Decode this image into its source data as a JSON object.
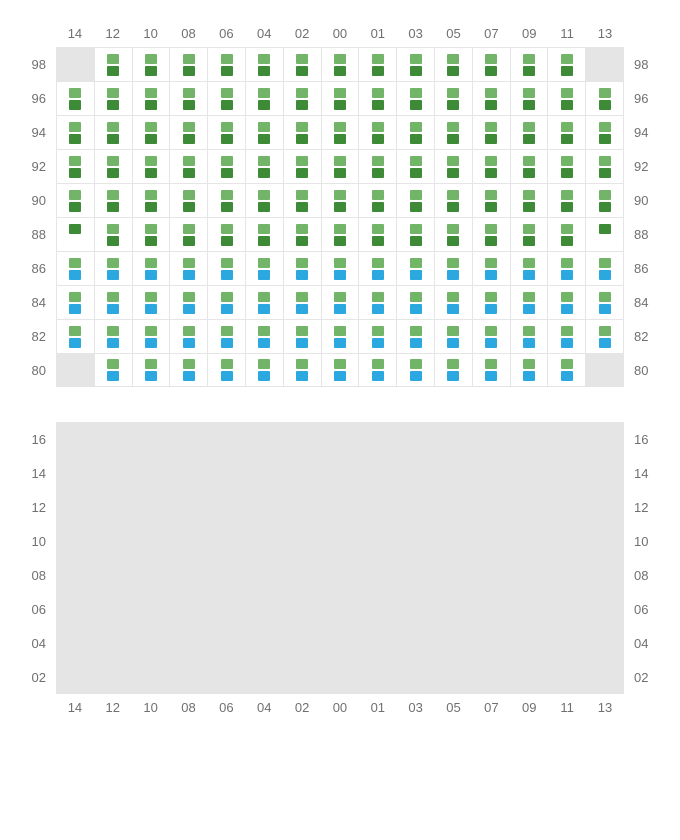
{
  "columns": [
    "14",
    "12",
    "10",
    "08",
    "06",
    "04",
    "02",
    "00",
    "01",
    "03",
    "05",
    "07",
    "09",
    "11",
    "13"
  ],
  "sections": [
    {
      "id": "upper",
      "showTopCols": true,
      "showBottomCols": false,
      "rows": [
        {
          "label": "98",
          "cells": [
            {
              "blank": true
            },
            {
              "top": "green-light",
              "bot": "green-dark"
            },
            {
              "top": "green-light",
              "bot": "green-dark"
            },
            {
              "top": "green-light",
              "bot": "green-dark"
            },
            {
              "top": "green-light",
              "bot": "green-dark"
            },
            {
              "top": "green-light",
              "bot": "green-dark"
            },
            {
              "top": "green-light",
              "bot": "green-dark"
            },
            {
              "top": "green-light",
              "bot": "green-dark"
            },
            {
              "top": "green-light",
              "bot": "green-dark"
            },
            {
              "top": "green-light",
              "bot": "green-dark"
            },
            {
              "top": "green-light",
              "bot": "green-dark"
            },
            {
              "top": "green-light",
              "bot": "green-dark"
            },
            {
              "top": "green-light",
              "bot": "green-dark"
            },
            {
              "top": "green-light",
              "bot": "green-dark"
            },
            {
              "blank": true
            }
          ]
        },
        {
          "label": "96",
          "cells": [
            {
              "top": "green-light",
              "bot": "green-dark"
            },
            {
              "top": "green-light",
              "bot": "green-dark"
            },
            {
              "top": "green-light",
              "bot": "green-dark"
            },
            {
              "top": "green-light",
              "bot": "green-dark"
            },
            {
              "top": "green-light",
              "bot": "green-dark"
            },
            {
              "top": "green-light",
              "bot": "green-dark"
            },
            {
              "top": "green-light",
              "bot": "green-dark"
            },
            {
              "top": "green-light",
              "bot": "green-dark"
            },
            {
              "top": "green-light",
              "bot": "green-dark"
            },
            {
              "top": "green-light",
              "bot": "green-dark"
            },
            {
              "top": "green-light",
              "bot": "green-dark"
            },
            {
              "top": "green-light",
              "bot": "green-dark"
            },
            {
              "top": "green-light",
              "bot": "green-dark"
            },
            {
              "top": "green-light",
              "bot": "green-dark"
            },
            {
              "top": "green-light",
              "bot": "green-dark"
            }
          ]
        },
        {
          "label": "94",
          "cells": [
            {
              "top": "green-light",
              "bot": "green-dark"
            },
            {
              "top": "green-light",
              "bot": "green-dark"
            },
            {
              "top": "green-light",
              "bot": "green-dark"
            },
            {
              "top": "green-light",
              "bot": "green-dark"
            },
            {
              "top": "green-light",
              "bot": "green-dark"
            },
            {
              "top": "green-light",
              "bot": "green-dark"
            },
            {
              "top": "green-light",
              "bot": "green-dark"
            },
            {
              "top": "green-light",
              "bot": "green-dark"
            },
            {
              "top": "green-light",
              "bot": "green-dark"
            },
            {
              "top": "green-light",
              "bot": "green-dark"
            },
            {
              "top": "green-light",
              "bot": "green-dark"
            },
            {
              "top": "green-light",
              "bot": "green-dark"
            },
            {
              "top": "green-light",
              "bot": "green-dark"
            },
            {
              "top": "green-light",
              "bot": "green-dark"
            },
            {
              "top": "green-light",
              "bot": "green-dark"
            }
          ]
        },
        {
          "label": "92",
          "cells": [
            {
              "top": "green-light",
              "bot": "green-dark"
            },
            {
              "top": "green-light",
              "bot": "green-dark"
            },
            {
              "top": "green-light",
              "bot": "green-dark"
            },
            {
              "top": "green-light",
              "bot": "green-dark"
            },
            {
              "top": "green-light",
              "bot": "green-dark"
            },
            {
              "top": "green-light",
              "bot": "green-dark"
            },
            {
              "top": "green-light",
              "bot": "green-dark"
            },
            {
              "top": "green-light",
              "bot": "green-dark"
            },
            {
              "top": "green-light",
              "bot": "green-dark"
            },
            {
              "top": "green-light",
              "bot": "green-dark"
            },
            {
              "top": "green-light",
              "bot": "green-dark"
            },
            {
              "top": "green-light",
              "bot": "green-dark"
            },
            {
              "top": "green-light",
              "bot": "green-dark"
            },
            {
              "top": "green-light",
              "bot": "green-dark"
            },
            {
              "top": "green-light",
              "bot": "green-dark"
            }
          ]
        },
        {
          "label": "90",
          "cells": [
            {
              "top": "green-light",
              "bot": "green-dark"
            },
            {
              "top": "green-light",
              "bot": "green-dark"
            },
            {
              "top": "green-light",
              "bot": "green-dark"
            },
            {
              "top": "green-light",
              "bot": "green-dark"
            },
            {
              "top": "green-light",
              "bot": "green-dark"
            },
            {
              "top": "green-light",
              "bot": "green-dark"
            },
            {
              "top": "green-light",
              "bot": "green-dark"
            },
            {
              "top": "green-light",
              "bot": "green-dark"
            },
            {
              "top": "green-light",
              "bot": "green-dark"
            },
            {
              "top": "green-light",
              "bot": "green-dark"
            },
            {
              "top": "green-light",
              "bot": "green-dark"
            },
            {
              "top": "green-light",
              "bot": "green-dark"
            },
            {
              "top": "green-light",
              "bot": "green-dark"
            },
            {
              "top": "green-light",
              "bot": "green-dark"
            },
            {
              "top": "green-light",
              "bot": "green-dark"
            }
          ]
        },
        {
          "label": "88",
          "cells": [
            {
              "top": "green-dark",
              "bot": null
            },
            {
              "top": "green-light",
              "bot": "green-dark"
            },
            {
              "top": "green-light",
              "bot": "green-dark"
            },
            {
              "top": "green-light",
              "bot": "green-dark"
            },
            {
              "top": "green-light",
              "bot": "green-dark"
            },
            {
              "top": "green-light",
              "bot": "green-dark"
            },
            {
              "top": "green-light",
              "bot": "green-dark"
            },
            {
              "top": "green-light",
              "bot": "green-dark"
            },
            {
              "top": "green-light",
              "bot": "green-dark"
            },
            {
              "top": "green-light",
              "bot": "green-dark"
            },
            {
              "top": "green-light",
              "bot": "green-dark"
            },
            {
              "top": "green-light",
              "bot": "green-dark"
            },
            {
              "top": "green-light",
              "bot": "green-dark"
            },
            {
              "top": "green-light",
              "bot": "green-dark"
            },
            {
              "top": "green-dark",
              "bot": null
            }
          ]
        },
        {
          "label": "86",
          "cells": [
            {
              "top": "green-light",
              "bot": "blue"
            },
            {
              "top": "green-light",
              "bot": "blue"
            },
            {
              "top": "green-light",
              "bot": "blue"
            },
            {
              "top": "green-light",
              "bot": "blue"
            },
            {
              "top": "green-light",
              "bot": "blue"
            },
            {
              "top": "green-light",
              "bot": "blue"
            },
            {
              "top": "green-light",
              "bot": "blue"
            },
            {
              "top": "green-light",
              "bot": "blue"
            },
            {
              "top": "green-light",
              "bot": "blue"
            },
            {
              "top": "green-light",
              "bot": "blue"
            },
            {
              "top": "green-light",
              "bot": "blue"
            },
            {
              "top": "green-light",
              "bot": "blue"
            },
            {
              "top": "green-light",
              "bot": "blue"
            },
            {
              "top": "green-light",
              "bot": "blue"
            },
            {
              "top": "green-light",
              "bot": "blue"
            }
          ]
        },
        {
          "label": "84",
          "cells": [
            {
              "top": "green-light",
              "bot": "blue"
            },
            {
              "top": "green-light",
              "bot": "blue"
            },
            {
              "top": "green-light",
              "bot": "blue"
            },
            {
              "top": "green-light",
              "bot": "blue"
            },
            {
              "top": "green-light",
              "bot": "blue"
            },
            {
              "top": "green-light",
              "bot": "blue"
            },
            {
              "top": "green-light",
              "bot": "blue"
            },
            {
              "top": "green-light",
              "bot": "blue"
            },
            {
              "top": "green-light",
              "bot": "blue"
            },
            {
              "top": "green-light",
              "bot": "blue"
            },
            {
              "top": "green-light",
              "bot": "blue"
            },
            {
              "top": "green-light",
              "bot": "blue"
            },
            {
              "top": "green-light",
              "bot": "blue"
            },
            {
              "top": "green-light",
              "bot": "blue"
            },
            {
              "top": "green-light",
              "bot": "blue"
            }
          ]
        },
        {
          "label": "82",
          "cells": [
            {
              "top": "green-light",
              "bot": "blue"
            },
            {
              "top": "green-light",
              "bot": "blue"
            },
            {
              "top": "green-light",
              "bot": "blue"
            },
            {
              "top": "green-light",
              "bot": "blue"
            },
            {
              "top": "green-light",
              "bot": "blue"
            },
            {
              "top": "green-light",
              "bot": "blue"
            },
            {
              "top": "green-light",
              "bot": "blue"
            },
            {
              "top": "green-light",
              "bot": "blue"
            },
            {
              "top": "green-light",
              "bot": "blue"
            },
            {
              "top": "green-light",
              "bot": "blue"
            },
            {
              "top": "green-light",
              "bot": "blue"
            },
            {
              "top": "green-light",
              "bot": "blue"
            },
            {
              "top": "green-light",
              "bot": "blue"
            },
            {
              "top": "green-light",
              "bot": "blue"
            },
            {
              "top": "green-light",
              "bot": "blue"
            }
          ]
        },
        {
          "label": "80",
          "cells": [
            {
              "blank": true
            },
            {
              "top": "green-light",
              "bot": "blue"
            },
            {
              "top": "green-light",
              "bot": "blue"
            },
            {
              "top": "green-light",
              "bot": "blue"
            },
            {
              "top": "green-light",
              "bot": "blue"
            },
            {
              "top": "green-light",
              "bot": "blue"
            },
            {
              "top": "green-light",
              "bot": "blue"
            },
            {
              "top": "green-light",
              "bot": "blue"
            },
            {
              "top": "green-light",
              "bot": "blue"
            },
            {
              "top": "green-light",
              "bot": "blue"
            },
            {
              "top": "green-light",
              "bot": "blue"
            },
            {
              "top": "green-light",
              "bot": "blue"
            },
            {
              "top": "green-light",
              "bot": "blue"
            },
            {
              "top": "green-light",
              "bot": "blue"
            },
            {
              "blank": true
            }
          ]
        }
      ]
    },
    {
      "id": "lower",
      "showTopCols": false,
      "showBottomCols": true,
      "empty": true,
      "rows": [
        {
          "label": "16"
        },
        {
          "label": "14"
        },
        {
          "label": "12"
        },
        {
          "label": "10"
        },
        {
          "label": "08"
        },
        {
          "label": "06"
        },
        {
          "label": "04"
        },
        {
          "label": "02"
        }
      ]
    }
  ],
  "colors": {
    "green_light": "#72b568",
    "green_dark": "#3d8b37",
    "blue": "#2ca8e0",
    "blank_bg": "#e5e5e5",
    "grid_line": "#e5e5e5",
    "label_text": "#707070"
  }
}
